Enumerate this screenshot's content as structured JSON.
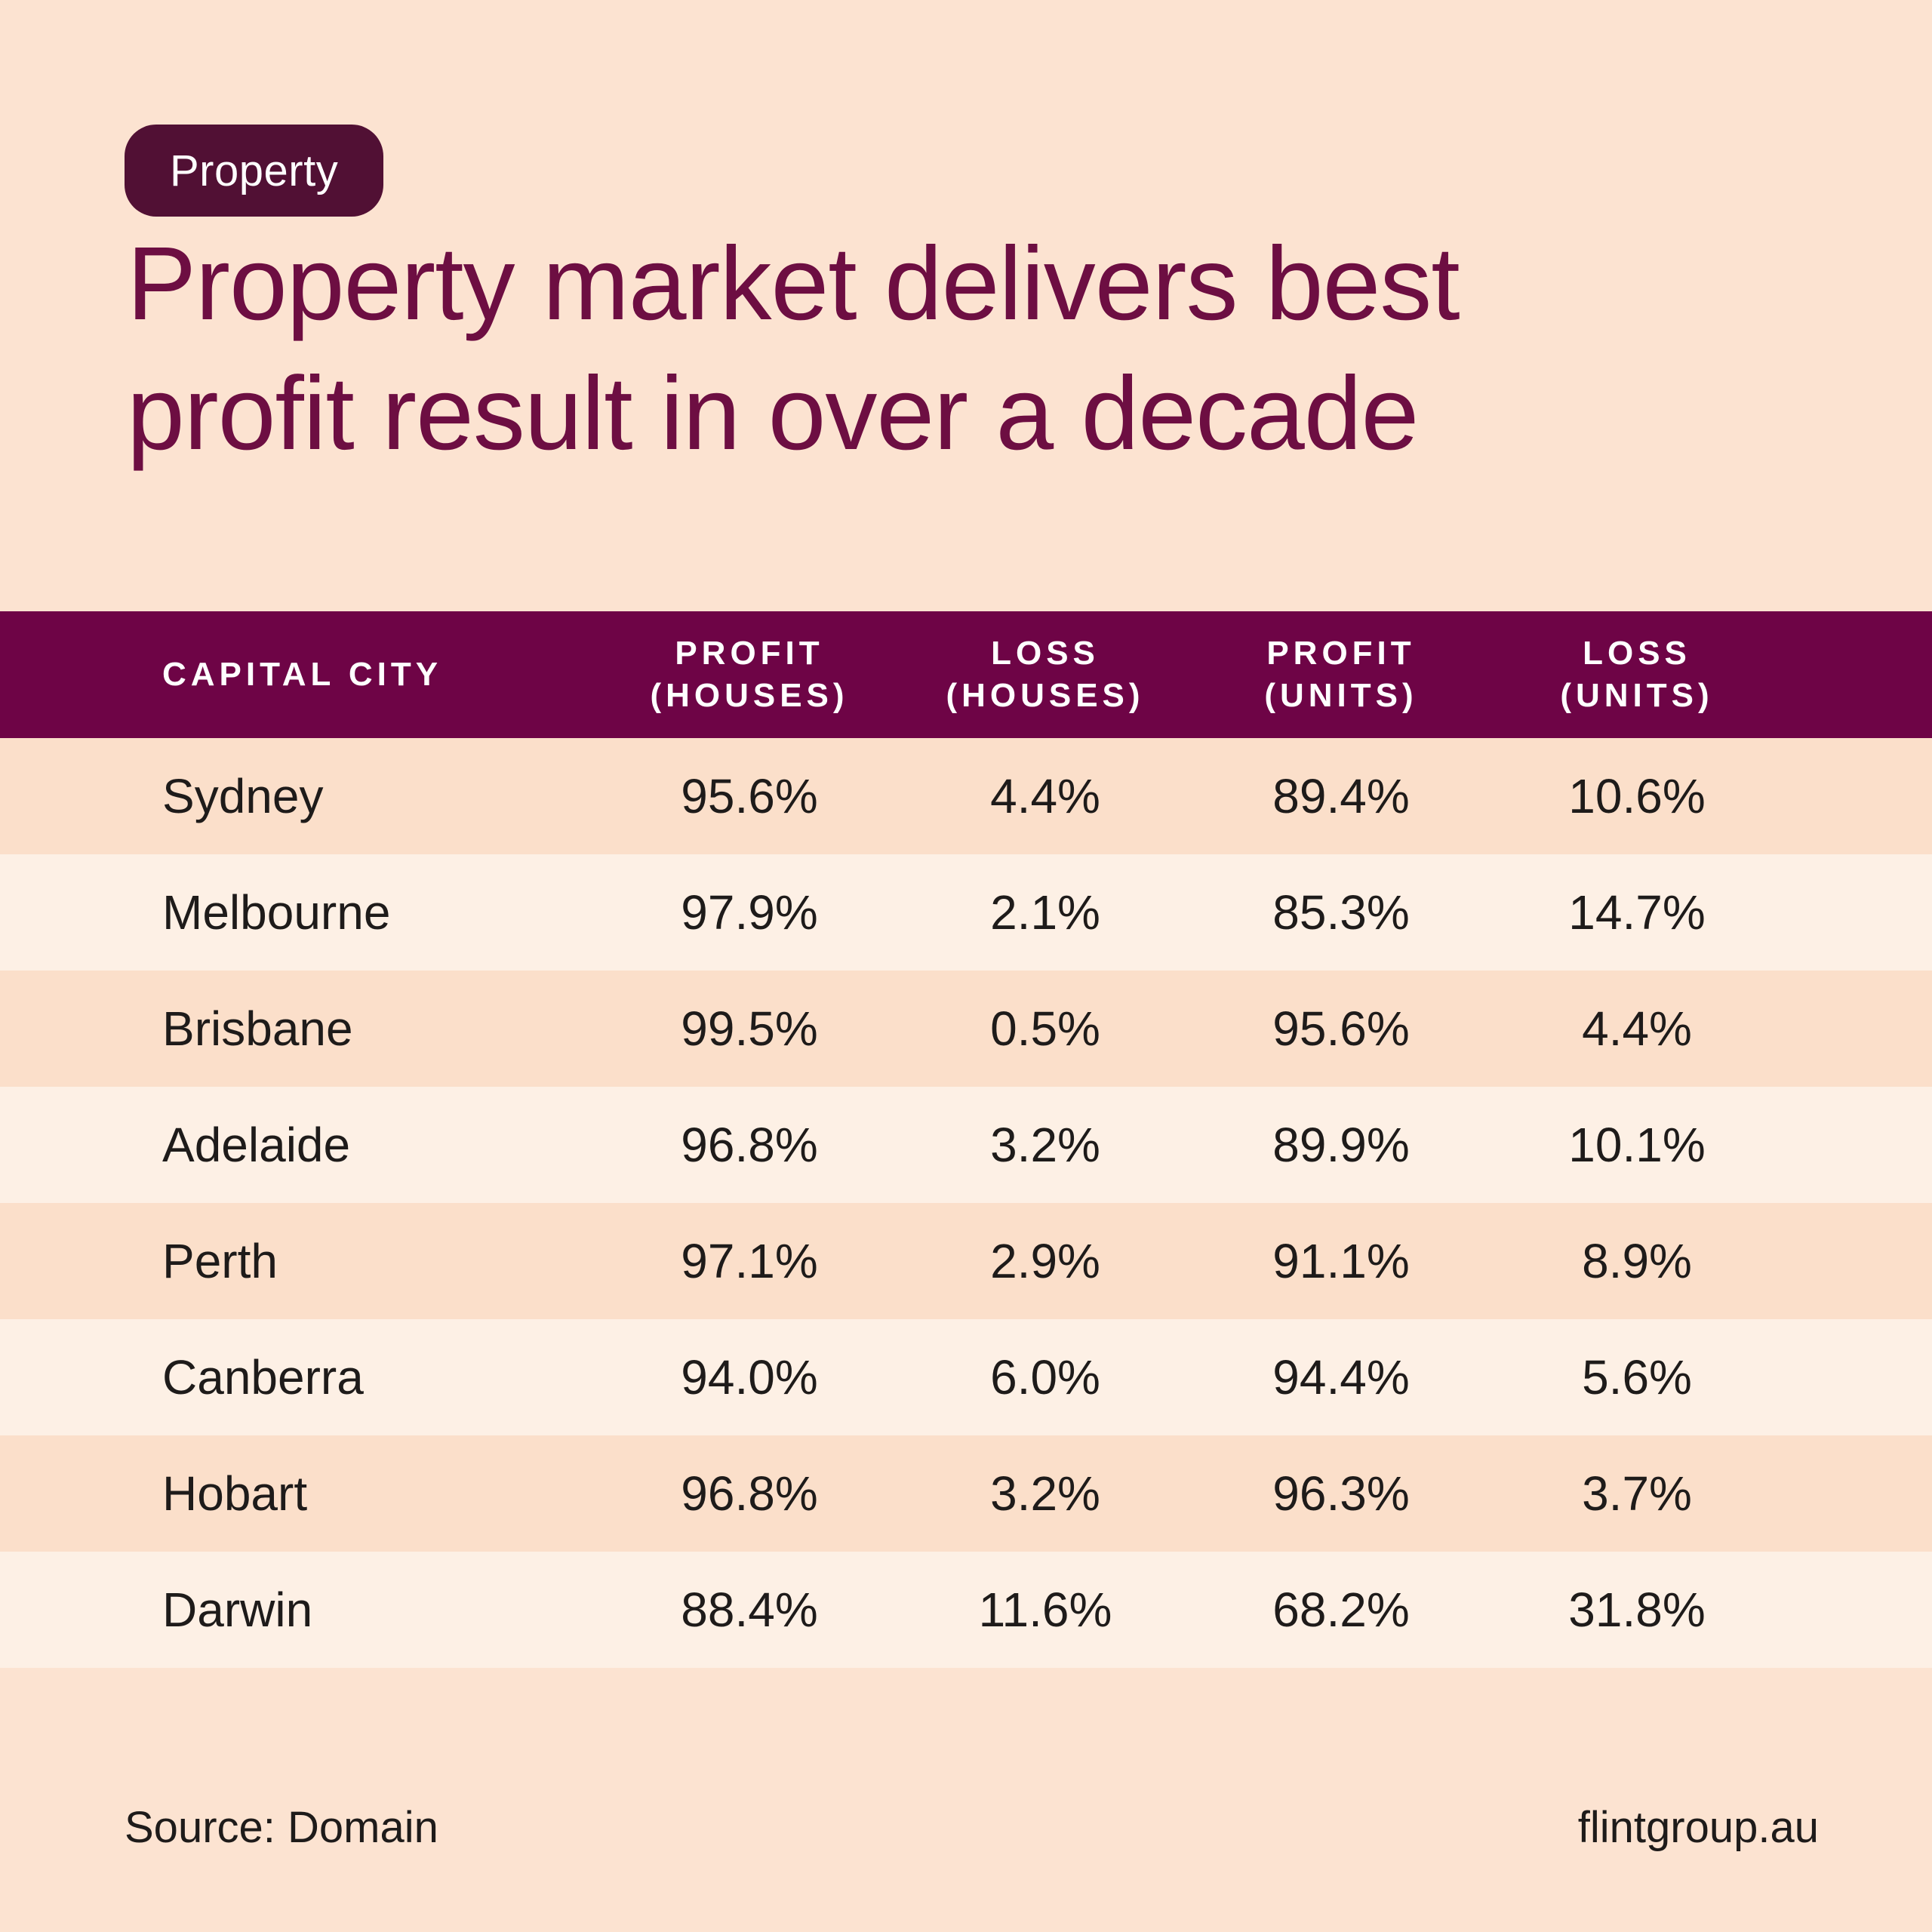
{
  "header": {
    "badge": "Property",
    "title_line1": "Property market delivers best",
    "title_line2": "profit result in over a decade"
  },
  "chart_data": {
    "type": "table",
    "title": "Property market delivers best profit result in over a decade",
    "units": "percent",
    "columns": [
      "CAPITAL CITY",
      "PROFIT (HOUSES)",
      "LOSS (HOUSES)",
      "PROFIT (UNITS)",
      "LOSS (UNITS)"
    ],
    "rows": [
      [
        "Sydney",
        95.6,
        4.4,
        89.4,
        10.6
      ],
      [
        "Melbourne",
        97.9,
        2.1,
        85.3,
        14.7
      ],
      [
        "Brisbane",
        99.5,
        0.5,
        95.6,
        4.4
      ],
      [
        "Adelaide",
        96.8,
        3.2,
        89.9,
        10.1
      ],
      [
        "Perth",
        97.1,
        2.9,
        91.1,
        8.9
      ],
      [
        "Canberra",
        94.0,
        6.0,
        94.4,
        5.6
      ],
      [
        "Hobart",
        96.8,
        3.2,
        96.3,
        3.7
      ],
      [
        "Darwin",
        88.4,
        11.6,
        68.2,
        31.8
      ]
    ]
  },
  "table": {
    "headers": [
      {
        "line1": "CAPITAL CITY",
        "line2": ""
      },
      {
        "line1": "PROFIT",
        "line2": "(HOUSES)"
      },
      {
        "line1": "LOSS",
        "line2": "(HOUSES)"
      },
      {
        "line1": "PROFIT",
        "line2": "(UNITS)"
      },
      {
        "line1": "LOSS",
        "line2": "(UNITS)"
      }
    ],
    "rows": [
      {
        "city": "Sydney",
        "profit_houses": "95.6%",
        "loss_houses": "4.4%",
        "profit_units": "89.4%",
        "loss_units": "10.6%"
      },
      {
        "city": "Melbourne",
        "profit_houses": "97.9%",
        "loss_houses": "2.1%",
        "profit_units": "85.3%",
        "loss_units": "14.7%"
      },
      {
        "city": "Brisbane",
        "profit_houses": "99.5%",
        "loss_houses": "0.5%",
        "profit_units": "95.6%",
        "loss_units": "4.4%"
      },
      {
        "city": "Adelaide",
        "profit_houses": "96.8%",
        "loss_houses": "3.2%",
        "profit_units": "89.9%",
        "loss_units": "10.1%"
      },
      {
        "city": "Perth",
        "profit_houses": "97.1%",
        "loss_houses": "2.9%",
        "profit_units": "91.1%",
        "loss_units": "8.9%"
      },
      {
        "city": "Canberra",
        "profit_houses": "94.0%",
        "loss_houses": "6.0%",
        "profit_units": "94.4%",
        "loss_units": "5.6%"
      },
      {
        "city": "Hobart",
        "profit_houses": "96.8%",
        "loss_houses": "3.2%",
        "profit_units": "96.3%",
        "loss_units": "3.7%"
      },
      {
        "city": "Darwin",
        "profit_houses": "88.4%",
        "loss_houses": "11.6%",
        "profit_units": "68.2%",
        "loss_units": "31.8%"
      }
    ]
  },
  "footer": {
    "source": "Source: Domain",
    "website": "flintgroup.au"
  },
  "colors": {
    "background": "#fce3d1",
    "badge_background": "#511034",
    "badge_text": "#ffffff",
    "title_text": "#6d0e42",
    "header_background": "#6e0446",
    "header_text": "#ffffff",
    "row_dark": "#fbdfca",
    "row_light": "#fdf0e5",
    "body_text": "#1e1b1a"
  }
}
